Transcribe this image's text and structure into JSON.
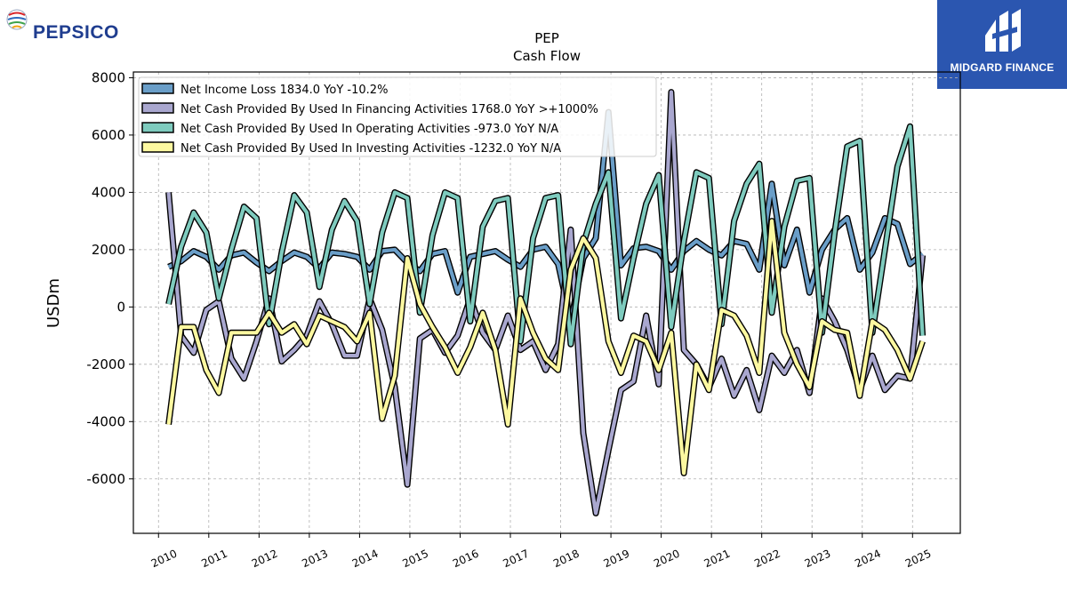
{
  "branding": {
    "company_logo_text": "PEPSICO",
    "partner_logo_text": "MIDGARD FINANCE"
  },
  "chart_data": {
    "type": "line",
    "title": "PEP",
    "subtitle": "Cash Flow",
    "xlabel": "",
    "ylabel": "USDm",
    "xlim": [
      2009.5,
      2025.95
    ],
    "ylim": [
      -7900,
      8200
    ],
    "x_ticks": [
      "2010",
      "2011",
      "2012",
      "2013",
      "2014",
      "2015",
      "2016",
      "2017",
      "2018",
      "2019",
      "2020",
      "2021",
      "2022",
      "2023",
      "2024",
      "2025"
    ],
    "y_ticks": [
      -6000,
      -4000,
      -2000,
      0,
      2000,
      4000,
      6000,
      8000
    ],
    "grid": true,
    "legend_position": "top-left",
    "x": [
      2010.2,
      2010.45,
      2010.7,
      2010.95,
      2011.2,
      2011.45,
      2011.7,
      2011.95,
      2012.2,
      2012.45,
      2012.7,
      2012.95,
      2013.2,
      2013.45,
      2013.7,
      2013.95,
      2014.2,
      2014.45,
      2014.7,
      2014.95,
      2015.2,
      2015.45,
      2015.7,
      2015.95,
      2016.2,
      2016.45,
      2016.7,
      2016.95,
      2017.2,
      2017.45,
      2017.7,
      2017.95,
      2018.2,
      2018.45,
      2018.7,
      2018.95,
      2019.2,
      2019.45,
      2019.7,
      2019.95,
      2020.2,
      2020.45,
      2020.7,
      2020.95,
      2021.2,
      2021.45,
      2021.7,
      2021.95,
      2022.2,
      2022.45,
      2022.7,
      2022.95,
      2023.2,
      2023.45,
      2023.7,
      2023.95,
      2024.2,
      2024.45,
      2024.7,
      2024.95,
      2025.2
    ],
    "series": [
      {
        "name": "Net Income Loss  1834.0 YoY -10.2%",
        "color": "#6a9ec8",
        "values": [
          1400,
          1600,
          1950,
          1750,
          1300,
          1800,
          1900,
          1550,
          1250,
          1600,
          1900,
          1750,
          1350,
          1900,
          1850,
          1750,
          1300,
          1950,
          2000,
          1550,
          1250,
          1850,
          1950,
          500,
          1750,
          1850,
          1950,
          1650,
          1400,
          2000,
          2100,
          1500,
          -500,
          1700,
          2400,
          6800,
          1450,
          2050,
          2100,
          1950,
          1300,
          1950,
          2300,
          2000,
          1800,
          2300,
          2200,
          1300,
          4300,
          1450,
          2700,
          500,
          2000,
          2700,
          3100,
          1300,
          1900,
          3100,
          2900,
          1500,
          1850
        ]
      },
      {
        "name": "Net Cash Provided By Used In Financing Activities  1768.0 YoY >+1000%",
        "color": "#a9a7cf",
        "values": [
          4000,
          -1000,
          -1600,
          -100,
          200,
          -1800,
          -2500,
          -1200,
          300,
          -1900,
          -1500,
          -1000,
          200,
          -600,
          -1700,
          -1700,
          300,
          -800,
          -2800,
          -6200,
          -1100,
          -800,
          -1600,
          -1000,
          300,
          -900,
          -1500,
          -300,
          -1500,
          -1200,
          -2200,
          -1300,
          2700,
          -4400,
          -7200,
          -5000,
          -2900,
          -2600,
          -300,
          -2700,
          7500,
          -1500,
          -2000,
          -2800,
          -1800,
          -3100,
          -2200,
          -3600,
          -1700,
          -2300,
          -1500,
          -3000,
          300,
          -500,
          -1500,
          -2900,
          -1700,
          -2900,
          -2400,
          -2500,
          1800
        ]
      },
      {
        "name": "Net Cash Provided By Used In Operating Activities  -973.0 YoY N/A",
        "color": "#7ecbbe",
        "values": [
          100,
          2100,
          3300,
          2600,
          300,
          2000,
          3500,
          3100,
          -600,
          1900,
          3900,
          3300,
          700,
          2700,
          3700,
          3000,
          100,
          2600,
          4000,
          3800,
          -200,
          2500,
          4000,
          3800,
          -500,
          2800,
          3700,
          3800,
          -1200,
          2400,
          3800,
          3900,
          -1300,
          2200,
          3600,
          4700,
          -400,
          1700,
          3600,
          4600,
          -700,
          2300,
          4700,
          4500,
          -600,
          3000,
          4300,
          5000,
          -200,
          2800,
          4400,
          4500,
          -900,
          2600,
          5600,
          5800,
          -900,
          2000,
          4900,
          6300,
          -1000
        ]
      },
      {
        "name": "Net Cash Provided By Used In Investing Activities  -1232.0 YoY N/A",
        "color": "#fcf8a0",
        "values": [
          -4100,
          -700,
          -700,
          -2200,
          -3000,
          -900,
          -900,
          -900,
          -200,
          -900,
          -600,
          -1300,
          -300,
          -500,
          -700,
          -1200,
          -200,
          -3900,
          -2400,
          1700,
          100,
          -700,
          -1400,
          -2300,
          -1400,
          -200,
          -1500,
          -4100,
          300,
          -900,
          -1800,
          -2200,
          1300,
          2400,
          1700,
          -1200,
          -2300,
          -1000,
          -1200,
          -2200,
          -900,
          -5800,
          -2000,
          -2900,
          -100,
          -300,
          -1000,
          -2300,
          3000,
          -900,
          -2000,
          -2800,
          -500,
          -800,
          -900,
          -3100,
          -500,
          -800,
          -1500,
          -2500,
          -1200
        ]
      }
    ]
  }
}
